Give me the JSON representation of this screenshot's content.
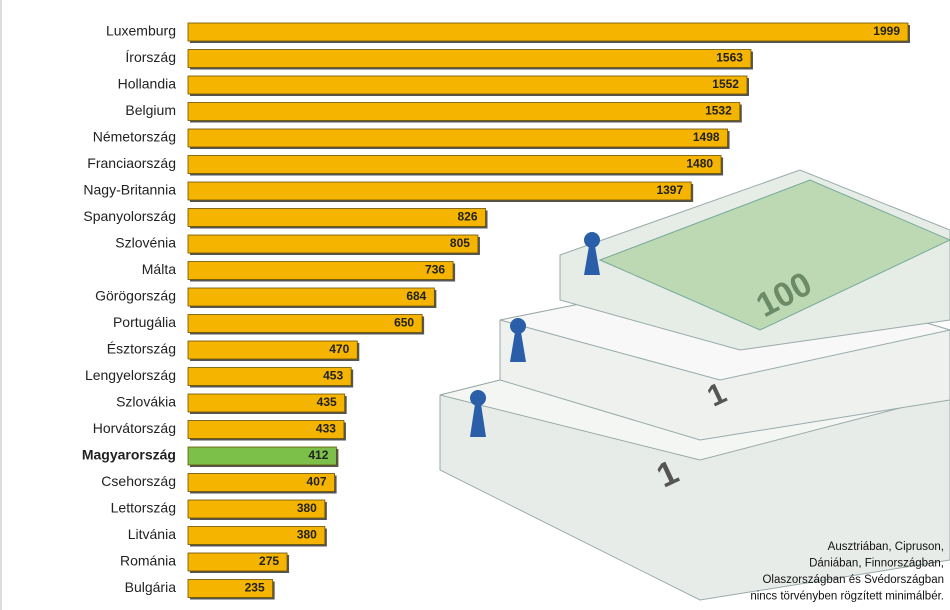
{
  "chart_data": {
    "type": "bar",
    "orientation": "horizontal",
    "categories": [
      "Luxemburg",
      "Írország",
      "Hollandia",
      "Belgium",
      "Németország",
      "Franciaország",
      "Nagy-Britannia",
      "Spanyolország",
      "Szlovénia",
      "Málta",
      "Görögország",
      "Portugália",
      "Észtország",
      "Lengyelország",
      "Szlovákia",
      "Horvátország",
      "Magyarország",
      "Csehország",
      "Lettország",
      "Litvánia",
      "Románia",
      "Bulgária"
    ],
    "values": [
      1999,
      1563,
      1552,
      1532,
      1498,
      1480,
      1397,
      826,
      805,
      736,
      684,
      650,
      470,
      453,
      435,
      433,
      412,
      407,
      380,
      380,
      275,
      235
    ],
    "color": "#f5b400",
    "highlight": "Magyarország",
    "highlight_color": "#7cc04a",
    "note": [
      "Ausztriában, Cipruson,",
      "Dániában, Finnországban,",
      "Olaszországban és Svédországban",
      "nincs törvényben rögzített minimálbér."
    ]
  }
}
